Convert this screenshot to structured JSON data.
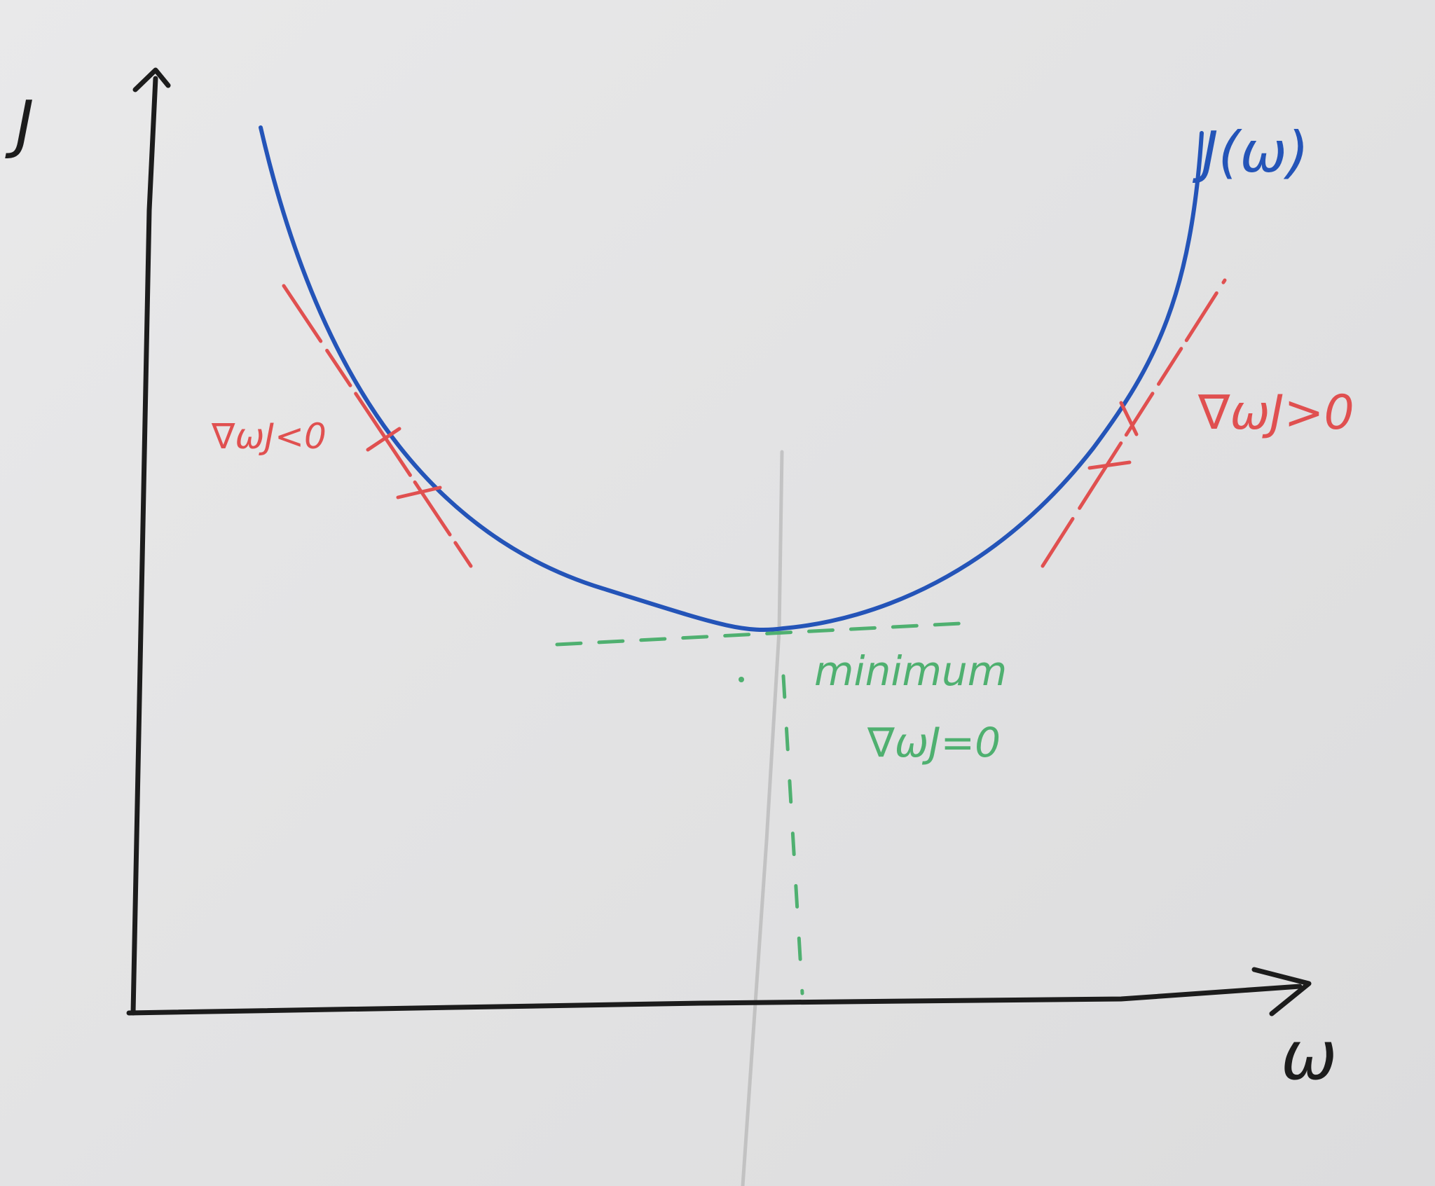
{
  "axes": {
    "y_label": "J",
    "x_label": "ω"
  },
  "curve": {
    "label": "J(ω)",
    "color": "#2454b8"
  },
  "annotations": {
    "left_gradient": "∇ωJ<0",
    "right_gradient": "∇ωJ>0",
    "minimum_title": "minimum",
    "minimum_gradient": "∇ωJ=0"
  },
  "colors": {
    "axis": "#1a1a1a",
    "tangent": "#e05050",
    "minimum": "#4fb070",
    "pencil": "#a8a8a8"
  }
}
